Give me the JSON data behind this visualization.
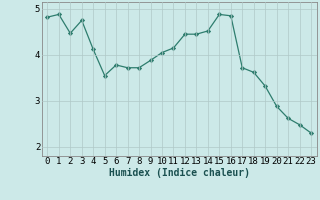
{
  "x": [
    0,
    1,
    2,
    3,
    4,
    5,
    6,
    7,
    8,
    9,
    10,
    11,
    12,
    13,
    14,
    15,
    16,
    17,
    18,
    19,
    20,
    21,
    22,
    23
  ],
  "y": [
    4.82,
    4.88,
    4.47,
    4.75,
    4.12,
    3.55,
    3.78,
    3.72,
    3.72,
    3.88,
    4.05,
    4.15,
    4.45,
    4.45,
    4.52,
    4.88,
    4.85,
    3.72,
    3.62,
    3.32,
    2.88,
    2.62,
    2.48,
    2.3
  ],
  "line_color": "#2e7d6e",
  "marker": "D",
  "marker_size": 2.2,
  "bg_color": "#cce9e8",
  "grid_color": "#b0c8c8",
  "xlabel": "Humidex (Indice chaleur)",
  "ylim": [
    1.8,
    5.15
  ],
  "xlim": [
    -0.5,
    23.5
  ],
  "yticks": [
    2,
    3,
    4,
    5
  ],
  "xticks": [
    0,
    1,
    2,
    3,
    4,
    5,
    6,
    7,
    8,
    9,
    10,
    11,
    12,
    13,
    14,
    15,
    16,
    17,
    18,
    19,
    20,
    21,
    22,
    23
  ],
  "xlabel_fontsize": 7.0,
  "tick_fontsize": 6.5
}
